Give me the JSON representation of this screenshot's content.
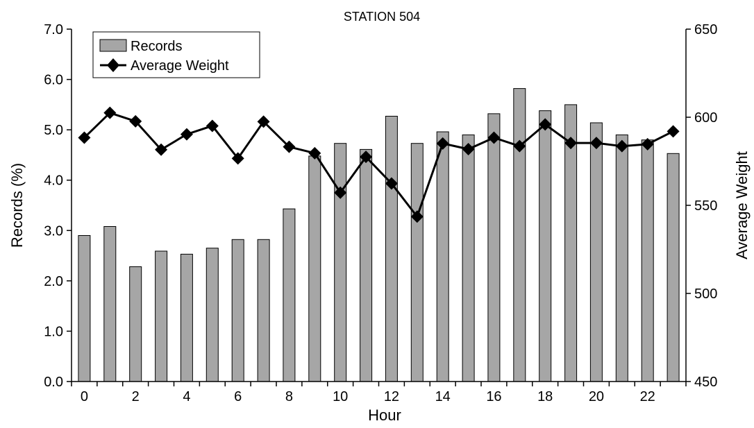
{
  "chart_data": {
    "type": "bar",
    "title": "STATION 504",
    "xlabel": "Hour",
    "ylabel": "Records (%)",
    "y2label": "Average Weight",
    "x": [
      0,
      1,
      2,
      3,
      4,
      5,
      6,
      7,
      8,
      9,
      10,
      11,
      12,
      13,
      14,
      15,
      16,
      17,
      18,
      19,
      20,
      21,
      22,
      23
    ],
    "x_ticks": [
      0,
      2,
      4,
      6,
      8,
      10,
      12,
      14,
      16,
      18,
      20,
      22
    ],
    "ylim": [
      0,
      7
    ],
    "y_ticks": [
      "0.0",
      "1.0",
      "2.0",
      "3.0",
      "4.0",
      "5.0",
      "6.0",
      "7.0"
    ],
    "y2lim": [
      450,
      650
    ],
    "y2_ticks": [
      "450",
      "500",
      "550",
      "600",
      "650"
    ],
    "grid": false,
    "legend_position": "top-left",
    "series": [
      {
        "name": "Records",
        "type": "bar",
        "axis": "left",
        "color": "#a6a6a6",
        "values": [
          2.9,
          3.08,
          2.28,
          2.59,
          2.53,
          2.65,
          2.82,
          2.82,
          3.43,
          4.48,
          4.73,
          4.61,
          5.27,
          4.73,
          4.96,
          4.9,
          5.32,
          5.82,
          5.38,
          5.5,
          5.14,
          4.9,
          4.8,
          4.53
        ]
      },
      {
        "name": "Average Weight",
        "type": "line",
        "axis": "right",
        "color": "#000000",
        "marker": "diamond",
        "values": [
          588.4,
          602.5,
          597.7,
          581.6,
          590.3,
          595.1,
          576.6,
          597.5,
          583.2,
          579.6,
          557.2,
          577.5,
          562.4,
          543.6,
          585.1,
          581.9,
          588.4,
          583.6,
          595.9,
          585.4,
          585.4,
          583.6,
          584.7,
          592.0
        ]
      }
    ]
  }
}
